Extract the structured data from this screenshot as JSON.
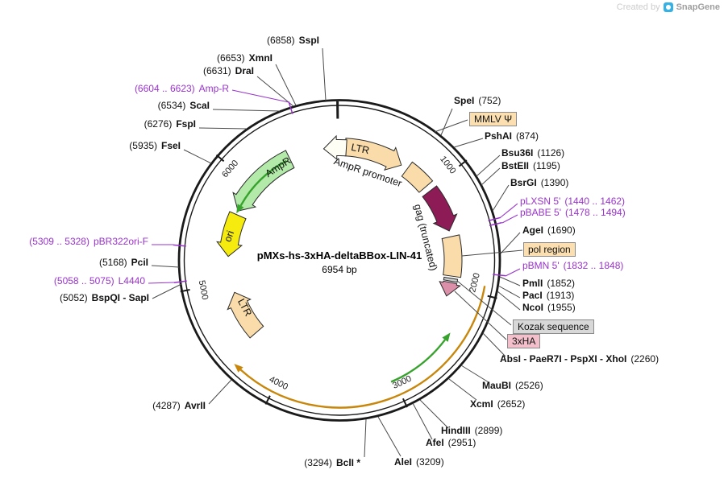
{
  "watermark": {
    "created_by": "Created by",
    "brand": "SnapGene"
  },
  "plasmid": {
    "name": "pMXs-hs-3xHA-deltaBBox-LIN-41",
    "size": "6954 bp"
  },
  "tick_labels": [
    "1000",
    "2000",
    "3000",
    "4000",
    "5000",
    "6000"
  ],
  "feature_labels": {
    "ltr5": "LTR",
    "ampr_promoter": "AmpR promoter",
    "gag": "gag (truncated)",
    "ampr": "AmpR",
    "ori": "ori",
    "ltr3": "LTR"
  },
  "boxed_labels": {
    "mmlv": "MMLV Ψ",
    "pol": "pol region",
    "kozak": "Kozak sequence",
    "ha": "3xHA"
  },
  "sites_left": [
    {
      "pos": "(6858)",
      "name": "SspI"
    },
    {
      "pos": "(6653)",
      "name": "XmnI"
    },
    {
      "pos": "(6631)",
      "name": "DraI"
    },
    {
      "pos": "(6604 .. 6623)",
      "name": "Amp-R",
      "primer": true
    },
    {
      "pos": "(6534)",
      "name": "ScaI"
    },
    {
      "pos": "(6276)",
      "name": "FspI"
    },
    {
      "pos": "(5935)",
      "name": "FseI"
    },
    {
      "pos": "(5309 .. 5328)",
      "name": "pBR322ori-F",
      "primer": true
    },
    {
      "pos": "(5168)",
      "name": "PciI"
    },
    {
      "pos": "(5058 .. 5075)",
      "name": "L4440",
      "primer": true
    },
    {
      "pos": "(5052)",
      "name": "BspQI - SapI"
    },
    {
      "pos": "(4287)",
      "name": "AvrII"
    },
    {
      "pos": "(3294)",
      "name": "BclI *"
    }
  ],
  "sites_right": [
    {
      "name": "SpeI",
      "pos": "(752)"
    },
    {
      "name": "PshAI",
      "pos": "(874)"
    },
    {
      "name": "Bsu36I",
      "pos": "(1126)"
    },
    {
      "name": "BstEII",
      "pos": "(1195)"
    },
    {
      "name": "BsrGI",
      "pos": "(1390)"
    },
    {
      "name": "pLXSN 5'",
      "pos": "(1440 .. 1462)",
      "primer": true
    },
    {
      "name": "pBABE 5'",
      "pos": "(1478 .. 1494)",
      "primer": true
    },
    {
      "name": "AgeI",
      "pos": "(1690)"
    },
    {
      "name": "pBMN 5'",
      "pos": "(1832 .. 1848)",
      "primer": true
    },
    {
      "name": "PmlI",
      "pos": "(1852)"
    },
    {
      "name": "PacI",
      "pos": "(1913)"
    },
    {
      "name": "NcoI",
      "pos": "(1955)"
    },
    {
      "name": "AbsI - PaeR7I - PspXI - XhoI",
      "pos": "(2260)"
    },
    {
      "name": "MauBI",
      "pos": "(2526)"
    },
    {
      "name": "XcmI",
      "pos": "(2652)"
    },
    {
      "name": "HindIII",
      "pos": "(2899)"
    },
    {
      "name": "AfeI",
      "pos": "(2951)"
    },
    {
      "name": "AleI",
      "pos": "(3209)"
    }
  ],
  "colors": {
    "wheat": "#F9DCA9",
    "gag_maroon": "#8C1B56",
    "kozak_gray": "#CFCFCF",
    "ha_pink": "#DC8FA9",
    "ori_yellow": "#F5EB0F",
    "ampr_green": "#B3E9A9",
    "promoter_ivory": "#FFFEF4",
    "orf_green": "#37A32D",
    "transcript_orange": "#C8860A",
    "primer_purple": "#9933CC",
    "backbone": "#1a1a1a"
  }
}
